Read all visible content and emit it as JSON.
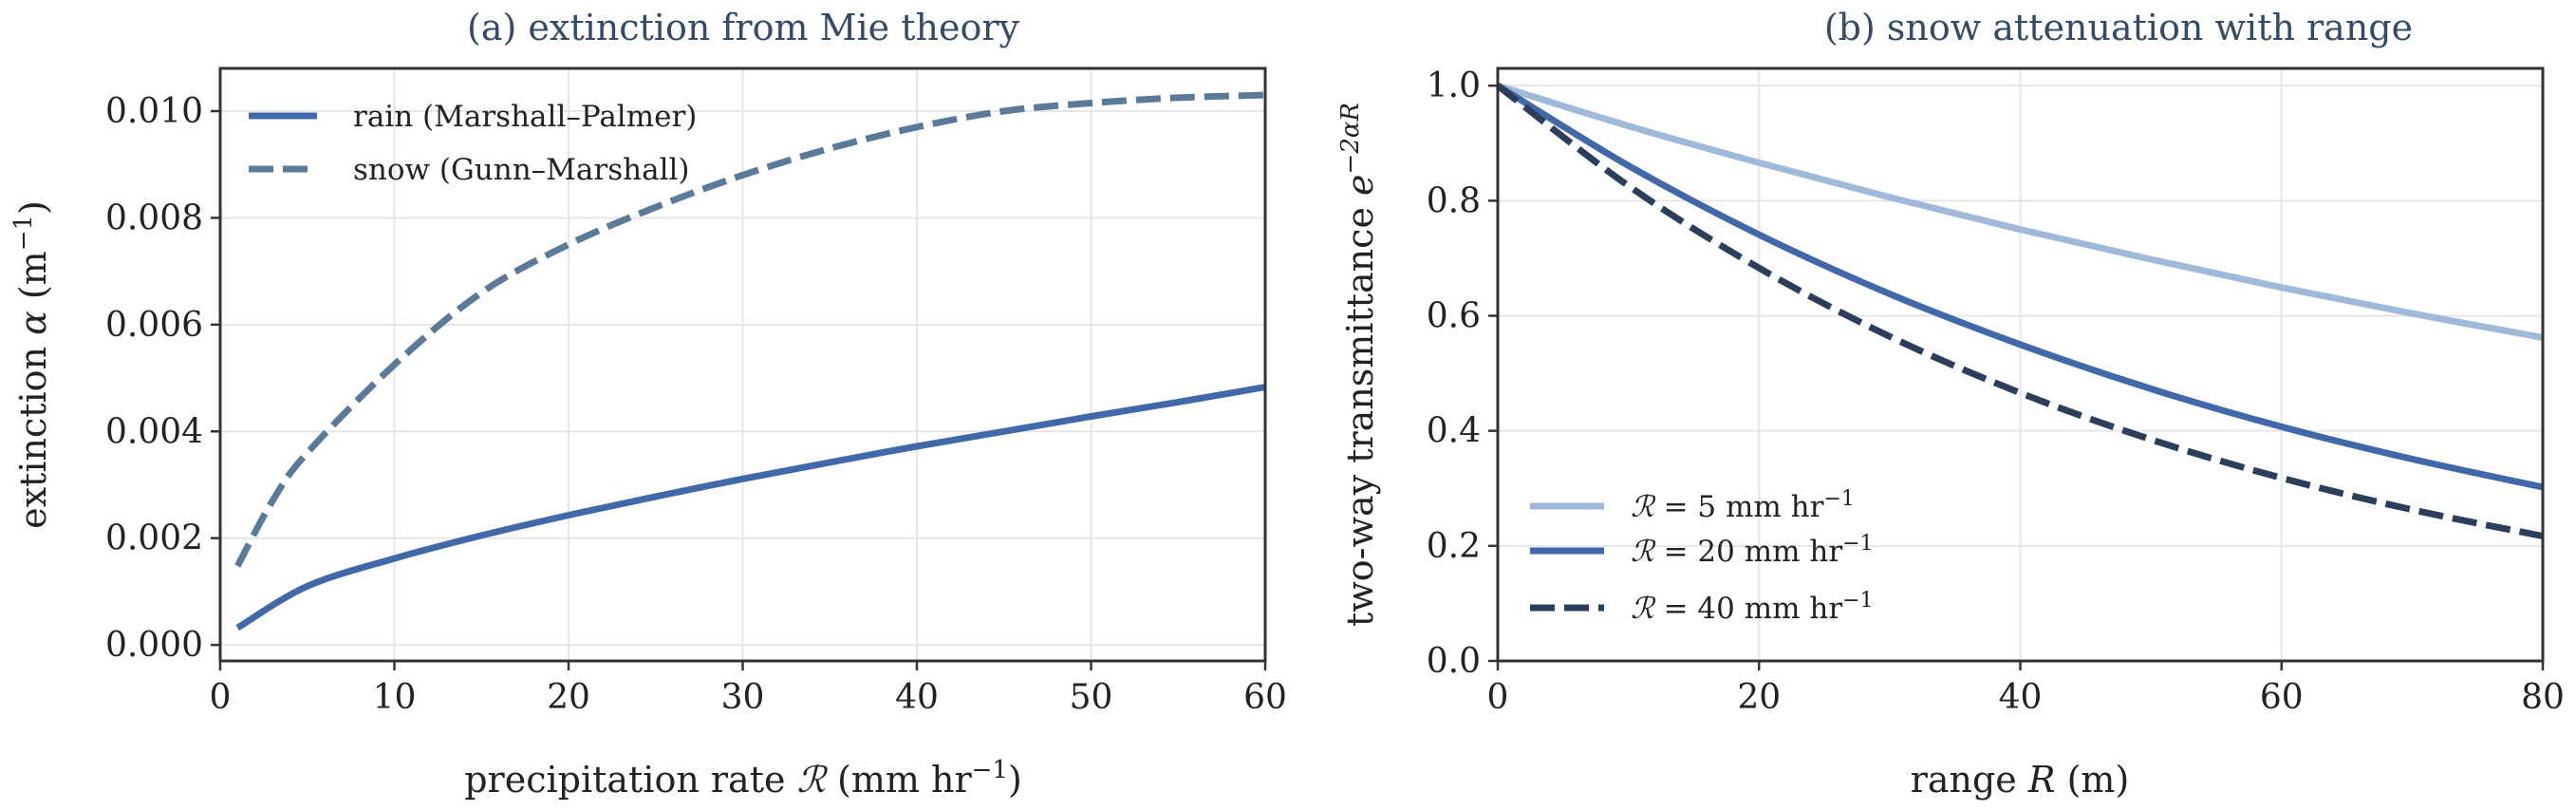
{
  "chart_data": [
    {
      "type": "line",
      "title": "(a) extinction from Mie theory",
      "xlabel": "precipitation rate",
      "xlabel_symbol": "ℛ",
      "xlabel_unit_prefix": "(mm hr",
      "xlabel_unit_exp": "−1",
      "xlabel_unit_suffix": ")",
      "ylabel": "extinction",
      "ylabel_symbol": "α",
      "ylabel_unit_prefix": "(m",
      "ylabel_unit_exp": "−1",
      "ylabel_unit_suffix": ")",
      "xlim": [
        0,
        60
      ],
      "ylim": [
        -0.0003,
        0.0108
      ],
      "x_ticks": [
        0,
        10,
        20,
        30,
        40,
        50,
        60
      ],
      "x_tick_labels": [
        "0",
        "10",
        "20",
        "30",
        "40",
        "50",
        "60"
      ],
      "y_ticks": [
        0.0,
        0.002,
        0.004,
        0.006,
        0.008,
        0.01
      ],
      "y_tick_labels": [
        "0.000",
        "0.002",
        "0.004",
        "0.006",
        "0.008",
        "0.010"
      ],
      "grid": true,
      "legend_position": "top-left",
      "series": [
        {
          "name": "rain (Marshall–Palmer)",
          "color": "#4169aa",
          "dash": "solid",
          "x": [
            1,
            5,
            10,
            15,
            20,
            25,
            30,
            35,
            40,
            45,
            50,
            55,
            60
          ],
          "y": [
            0.00032,
            0.0011,
            0.00162,
            0.00205,
            0.00243,
            0.00278,
            0.00311,
            0.00342,
            0.00372,
            0.004,
            0.00428,
            0.00455,
            0.00483
          ]
        },
        {
          "name": "snow (Gunn–Marshall)",
          "color": "#5b7a99",
          "dash": "dashed",
          "x": [
            1,
            3,
            5,
            10,
            15,
            20,
            25,
            30,
            35,
            40,
            45,
            50,
            55,
            60
          ],
          "y": [
            0.00148,
            0.0027,
            0.0036,
            0.00525,
            0.0066,
            0.0075,
            0.0082,
            0.0088,
            0.0093,
            0.0097,
            0.01,
            0.01015,
            0.01025,
            0.0103
          ]
        }
      ]
    },
    {
      "type": "line",
      "title": "(b) snow attenuation with range",
      "xlabel": "range",
      "xlabel_symbol": "R",
      "xlabel_unit_suffix": "(m)",
      "ylabel": "two-way transmittance",
      "ylabel_symbol": "e",
      "ylabel_exp": "−2αR",
      "xlim": [
        0,
        80
      ],
      "ylim": [
        0.0,
        1.03
      ],
      "x_ticks": [
        0,
        20,
        40,
        60,
        80
      ],
      "x_tick_labels": [
        "0",
        "20",
        "40",
        "60",
        "80"
      ],
      "y_ticks": [
        0.0,
        0.2,
        0.4,
        0.6,
        0.8,
        1.0
      ],
      "y_tick_labels": [
        "0.0",
        "0.2",
        "0.4",
        "0.6",
        "0.8",
        "1.0"
      ],
      "grid": true,
      "legend_position": "bottom-left",
      "series": [
        {
          "name": "ℛ = 5 mm hr⁻¹",
          "name_symbol": "ℛ",
          "name_value": " = 5 mm hr",
          "name_exp": "−1",
          "color": "#9fbad9",
          "dash": "solid",
          "x": [
            0,
            10,
            20,
            30,
            40,
            50,
            60,
            70,
            80
          ],
          "y": [
            1.0,
            0.93,
            0.866,
            0.806,
            0.75,
            0.698,
            0.649,
            0.604,
            0.562
          ]
        },
        {
          "name": "ℛ = 20 mm hr⁻¹",
          "name_symbol": "ℛ",
          "name_value": " = 20 mm hr",
          "name_exp": "−1",
          "color": "#4169aa",
          "dash": "solid",
          "x": [
            0,
            10,
            20,
            30,
            40,
            50,
            60,
            70,
            80
          ],
          "y": [
            1.0,
            0.861,
            0.741,
            0.638,
            0.55,
            0.473,
            0.407,
            0.351,
            0.302
          ]
        },
        {
          "name": "ℛ = 40 mm hr⁻¹",
          "name_symbol": "ℛ",
          "name_value": " = 40 mm hr",
          "name_exp": "−1",
          "color": "#2b3f5c",
          "dash": "dashed",
          "x": [
            0,
            10,
            20,
            30,
            40,
            50,
            60,
            70,
            80
          ],
          "y": [
            1.0,
            0.826,
            0.683,
            0.564,
            0.466,
            0.385,
            0.318,
            0.263,
            0.217
          ]
        }
      ]
    }
  ]
}
